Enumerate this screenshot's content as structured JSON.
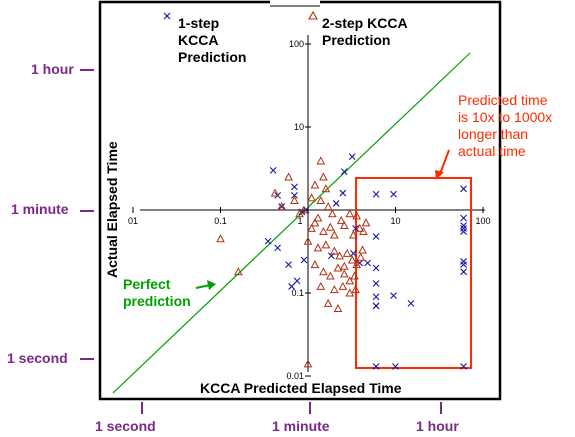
{
  "chart_data": {
    "type": "scatter",
    "xlabel": "KCCA Predicted Elapsed Time",
    "ylabel": "Actual Elapsed Time",
    "x_scale": "log",
    "y_scale": "log",
    "xlim": [
      0.01,
      100
    ],
    "ylim": [
      0.01,
      100
    ],
    "x_tick_labels": [
      "01",
      "0.1",
      "1",
      "10",
      "100"
    ],
    "y_tick_labels": [
      "0.01",
      "0.1",
      "1",
      "10",
      "100"
    ],
    "x_time_labels": [
      "1 second",
      "1 minute",
      "1 hour"
    ],
    "y_time_labels": [
      "1 hour",
      "1 minute",
      "1 second"
    ],
    "perfect_prediction_label": "Perfect\nprediction",
    "annotation": "Predicted time\nis 10x to 1000x\nlonger than\nactual time",
    "colors": {
      "series1": "#1a1aa0",
      "series2": "#b03010",
      "diagonal": "#00a000",
      "annotation": "#ff2a00",
      "time_labels": "#7a2a86"
    },
    "series": [
      {
        "name": "1-step\nKCCA\nPrediction",
        "marker": "x",
        "points": [
          [
            0.4,
            3.0
          ],
          [
            0.7,
            1.5
          ],
          [
            0.7,
            1.9
          ],
          [
            0.45,
            1.5
          ],
          [
            0.5,
            1.1
          ],
          [
            0.85,
            0.95
          ],
          [
            0.95,
            1.0
          ],
          [
            0.45,
            0.35
          ],
          [
            0.35,
            0.42
          ],
          [
            0.6,
            0.22
          ],
          [
            0.75,
            0.14
          ],
          [
            0.65,
            0.12
          ],
          [
            0.9,
            0.25
          ],
          [
            2.6,
            2.9
          ],
          [
            3.2,
            4.4
          ],
          [
            2.1,
            1.2
          ],
          [
            1.85,
            0.28
          ],
          [
            3.5,
            0.6
          ],
          [
            3.3,
            0.3
          ],
          [
            3.9,
            0.23
          ],
          [
            4.8,
            0.23
          ],
          [
            2.5,
            1.6
          ],
          [
            6.0,
            1.55
          ],
          [
            6.0,
            0.48
          ],
          [
            6.0,
            0.2
          ],
          [
            6.0,
            0.13
          ],
          [
            6.0,
            0.09
          ],
          [
            6.0,
            0.07
          ],
          [
            6.0,
            0.07
          ],
          [
            6.0,
            0.013
          ],
          [
            9.5,
            1.55
          ],
          [
            9.5,
            0.093
          ],
          [
            15.0,
            0.075
          ],
          [
            10.0,
            0.013
          ],
          [
            60.0,
            1.8
          ],
          [
            60.0,
            0.8
          ],
          [
            60.0,
            0.65
          ],
          [
            60.0,
            0.6
          ],
          [
            60.0,
            0.55
          ],
          [
            60.0,
            0.24
          ],
          [
            60.0,
            0.22
          ],
          [
            60.0,
            0.18
          ],
          [
            60.0,
            0.013
          ]
        ]
      },
      {
        "name": "2-step KCCA\nPrediction",
        "marker": "triangle",
        "points": [
          [
            0.1,
            0.45
          ],
          [
            0.16,
            0.18
          ],
          [
            0.42,
            1.6
          ],
          [
            0.5,
            1.1
          ],
          [
            0.6,
            2.5
          ],
          [
            0.7,
            1.3
          ],
          [
            0.8,
            0.9
          ],
          [
            0.9,
            1.0
          ],
          [
            1.1,
            1.4
          ],
          [
            1.2,
            2.0
          ],
          [
            1.4,
            3.9
          ],
          [
            1.5,
            2.5
          ],
          [
            1.6,
            1.8
          ],
          [
            1.4,
            1.3
          ],
          [
            1.7,
            1.1
          ],
          [
            1.9,
            0.9
          ],
          [
            1.3,
            0.8
          ],
          [
            1.2,
            0.7
          ],
          [
            1.1,
            0.6
          ],
          [
            1.5,
            0.55
          ],
          [
            1.8,
            0.62
          ],
          [
            2.0,
            0.5
          ],
          [
            2.4,
            0.75
          ],
          [
            2.6,
            0.65
          ],
          [
            3.0,
            0.9
          ],
          [
            3.3,
            0.5
          ],
          [
            3.6,
            0.85
          ],
          [
            3.9,
            0.6
          ],
          [
            4.3,
            0.55
          ],
          [
            4.6,
            0.7
          ],
          [
            1.0,
            0.42
          ],
          [
            1.3,
            0.35
          ],
          [
            1.6,
            0.38
          ],
          [
            2.0,
            0.32
          ],
          [
            2.3,
            0.28
          ],
          [
            2.8,
            0.3
          ],
          [
            3.2,
            0.25
          ],
          [
            3.6,
            0.22
          ],
          [
            4.0,
            0.27
          ],
          [
            1.2,
            0.22
          ],
          [
            1.5,
            0.18
          ],
          [
            1.8,
            0.16
          ],
          [
            2.2,
            0.2
          ],
          [
            2.6,
            0.17
          ],
          [
            3.0,
            0.14
          ],
          [
            3.4,
            0.16
          ],
          [
            2.0,
            0.11
          ],
          [
            2.5,
            0.12
          ],
          [
            3.0,
            0.1
          ],
          [
            3.5,
            0.11
          ],
          [
            1.4,
            0.12
          ],
          [
            1.7,
            0.075
          ],
          [
            2.2,
            0.065
          ],
          [
            1.0,
            0.014
          ],
          [
            2.6,
            0.21
          ],
          [
            4.2,
            0.33
          ]
        ]
      }
    ]
  }
}
